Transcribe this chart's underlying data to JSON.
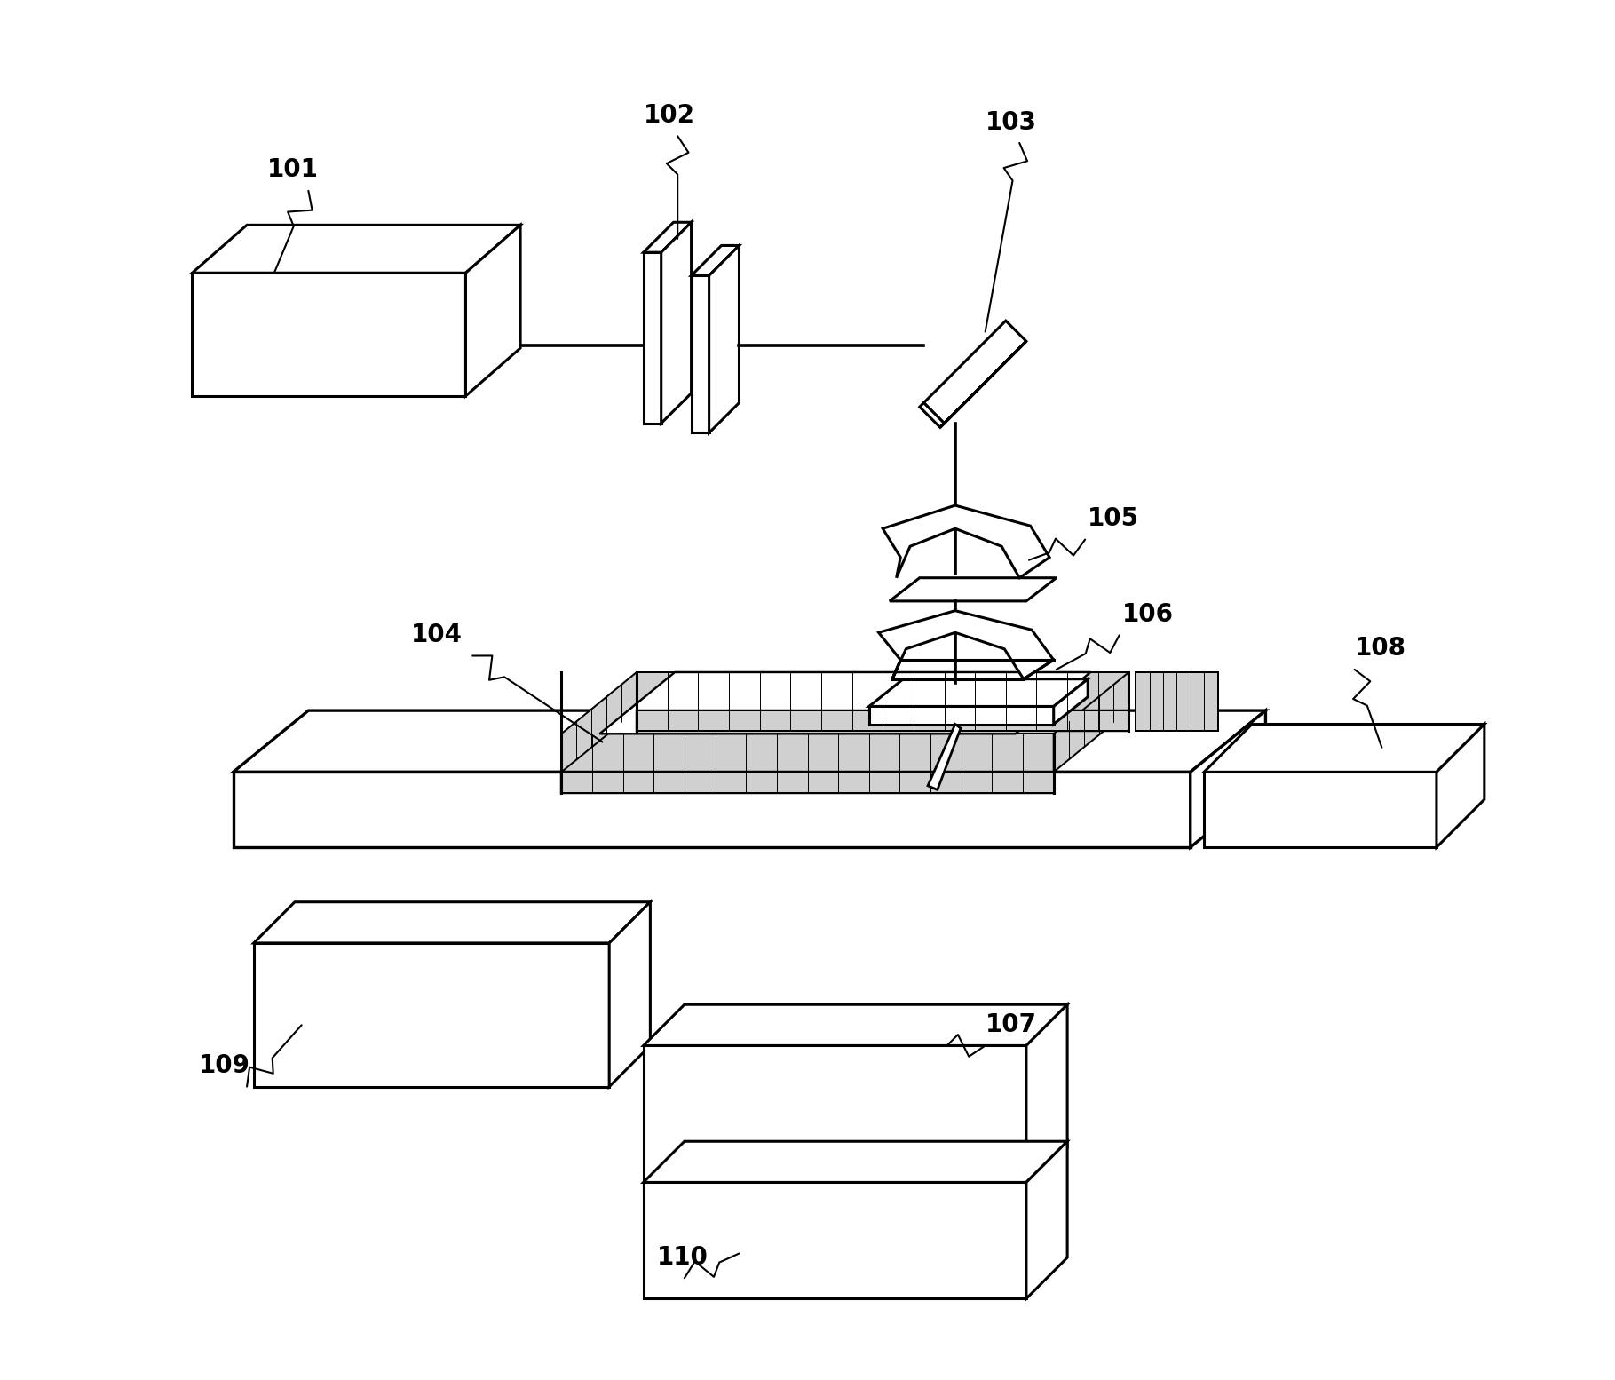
{
  "background_color": "#ffffff",
  "line_color": "#000000",
  "line_width": 2.2,
  "figsize": [
    18.19,
    15.54
  ],
  "dpi": 100
}
